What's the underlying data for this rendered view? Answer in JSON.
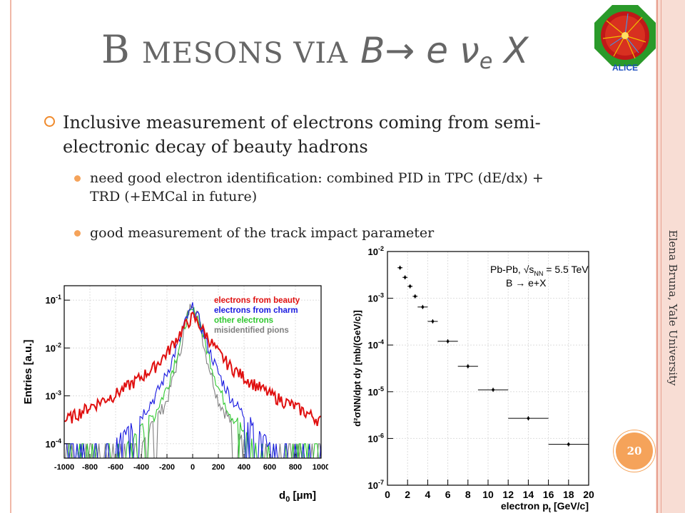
{
  "slide": {
    "title": {
      "prefix": "B",
      "small_caps": "mesons via",
      "math_B": "B",
      "arrow": "→",
      "e": "e",
      "nu": "ν",
      "nu_sub": "e",
      "X": "X"
    },
    "bullet_main": "Inclusive measurement of electrons coming from semi-electronic decay of beauty hadrons",
    "sub_bullets": [
      "need good electron identification: combined PID in TPC (dE/dx) + TRD (+EMCal in future)",
      "good measurement of the track impact parameter"
    ],
    "side_label": "Elena Bruna, Yale University",
    "page_number": "20",
    "logo_text": "ALICE"
  },
  "chart_data": [
    {
      "type": "line",
      "xlabel": "d0 [μm]",
      "xlabel_main": "d",
      "xlabel_sub": "0",
      "xlabel_unit": " [μm]",
      "ylabel": "Entries [a.u.]",
      "x_ticks": [
        "-1000",
        "-800",
        "-600",
        "-400",
        "-200",
        "0",
        "200",
        "400",
        "600",
        "800",
        "1000"
      ],
      "xlim": [
        -1000,
        1000
      ],
      "y_scale": "log",
      "ylim": [
        5e-05,
        0.2
      ],
      "y_ticks": [
        {
          "base": "10",
          "exp": "-1"
        },
        {
          "base": "10",
          "exp": "-2"
        },
        {
          "base": "10",
          "exp": "-3"
        },
        {
          "base": "10",
          "exp": "-4"
        }
      ],
      "legend": [
        {
          "name": "electrons from beauty",
          "color": "#e01010"
        },
        {
          "name": "electrons from charm",
          "color": "#1a1ae0"
        },
        {
          "name": "other electrons",
          "color": "#30c830"
        },
        {
          "name": "misidentified pions",
          "color": "#808080"
        }
      ],
      "legend_position": "top-right",
      "series": [
        {
          "name": "electrons from beauty",
          "color": "#e01010",
          "x": [
            -1000,
            -800,
            -600,
            -400,
            -300,
            -200,
            -100,
            -50,
            0,
            50,
            100,
            200,
            300,
            400,
            600,
            800,
            1000
          ],
          "y": [
            0.0003,
            0.0006,
            0.0011,
            0.0025,
            0.004,
            0.008,
            0.02,
            0.032,
            0.045,
            0.032,
            0.02,
            0.008,
            0.004,
            0.0025,
            0.0011,
            0.0006,
            0.0003
          ]
        },
        {
          "name": "electrons from charm",
          "color": "#1a1ae0",
          "x": [
            -600,
            -400,
            -300,
            -200,
            -100,
            -50,
            0,
            50,
            100,
            200,
            300,
            400,
            600
          ],
          "y": [
            0.0001,
            0.0004,
            0.0009,
            0.003,
            0.015,
            0.04,
            0.07,
            0.04,
            0.015,
            0.003,
            0.0009,
            0.0004,
            0.0001
          ]
        },
        {
          "name": "other electrons",
          "color": "#30c830",
          "x": [
            -500,
            -300,
            -200,
            -100,
            -50,
            0,
            50,
            100,
            200,
            300,
            500
          ],
          "y": [
            0.0001,
            0.0004,
            0.0015,
            0.012,
            0.04,
            0.06,
            0.04,
            0.012,
            0.0015,
            0.0004,
            0.0001
          ]
        },
        {
          "name": "misidentified pions",
          "color": "#808080",
          "x": [
            -400,
            -200,
            -100,
            -50,
            0,
            50,
            100,
            200,
            400
          ],
          "y": [
            0.0001,
            0.0008,
            0.008,
            0.04,
            0.1,
            0.04,
            0.008,
            0.0008,
            0.0001
          ]
        }
      ]
    },
    {
      "type": "scatter",
      "xlabel": "electron pt [GeV/c]",
      "xlabel_pre": "electron p",
      "xlabel_sub": "t",
      "xlabel_unit": " [GeV/c]",
      "ylabel": "d²σNN/dpt dy [mb/(GeV/c)]",
      "x_ticks": [
        "0",
        "2",
        "4",
        "6",
        "8",
        "10",
        "12",
        "14",
        "16",
        "18",
        "20"
      ],
      "xlim": [
        0,
        20
      ],
      "y_scale": "log",
      "ylim": [
        1e-07,
        0.01
      ],
      "y_ticks": [
        {
          "base": "10",
          "exp": "-2"
        },
        {
          "base": "10",
          "exp": "-3"
        },
        {
          "base": "10",
          "exp": "-4"
        },
        {
          "base": "10",
          "exp": "-5"
        },
        {
          "base": "10",
          "exp": "-6"
        },
        {
          "base": "10",
          "exp": "-7"
        }
      ],
      "annotations": {
        "line1_pre": "Pb-Pb, ",
        "line1_sqrt": "√s",
        "line1_sub": "NN",
        "line1_post": " = 5.5 TeV",
        "line2": "B → e+X"
      },
      "points": [
        {
          "x": 1.25,
          "xerr": 0.25,
          "y": 0.0045
        },
        {
          "x": 1.75,
          "xerr": 0.25,
          "y": 0.0028
        },
        {
          "x": 2.25,
          "xerr": 0.25,
          "y": 0.0018
        },
        {
          "x": 2.75,
          "xerr": 0.25,
          "y": 0.0011
        },
        {
          "x": 3.5,
          "xerr": 0.5,
          "y": 0.00065
        },
        {
          "x": 4.5,
          "xerr": 0.5,
          "y": 0.00032
        },
        {
          "x": 6.0,
          "xerr": 1.0,
          "y": 0.00012
        },
        {
          "x": 8.0,
          "xerr": 1.0,
          "y": 3.5e-05
        },
        {
          "x": 10.5,
          "xerr": 1.5,
          "y": 1.1e-05
        },
        {
          "x": 14.0,
          "xerr": 2.0,
          "y": 2.7e-06
        },
        {
          "x": 18.0,
          "xerr": 2.0,
          "y": 7.5e-07
        }
      ]
    }
  ]
}
